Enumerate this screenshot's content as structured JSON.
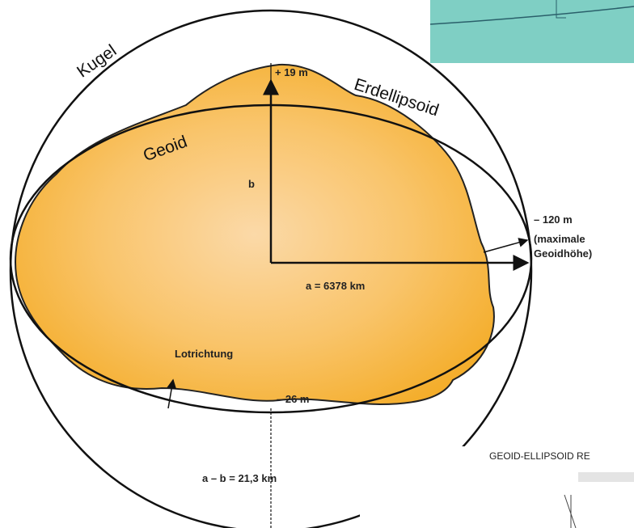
{
  "labels": {
    "sphere": "Kugel",
    "ellipsoid": "Erdellipsoid",
    "geoid": "Geoid",
    "top_height": "+ 19 m",
    "semi_minor": "b",
    "max_height_value": "– 120 m",
    "max_height_note_1": "(maximale",
    "max_height_note_2": "Geoidhöhe)",
    "semi_major": "a = 6378 km",
    "plumb_line": "Lotrichtung",
    "bottom_height": "– 26 m",
    "flattening": "a – b = 21,3 km"
  },
  "inset": {
    "title": "GEOID-ELLIPSOID RE"
  }
}
